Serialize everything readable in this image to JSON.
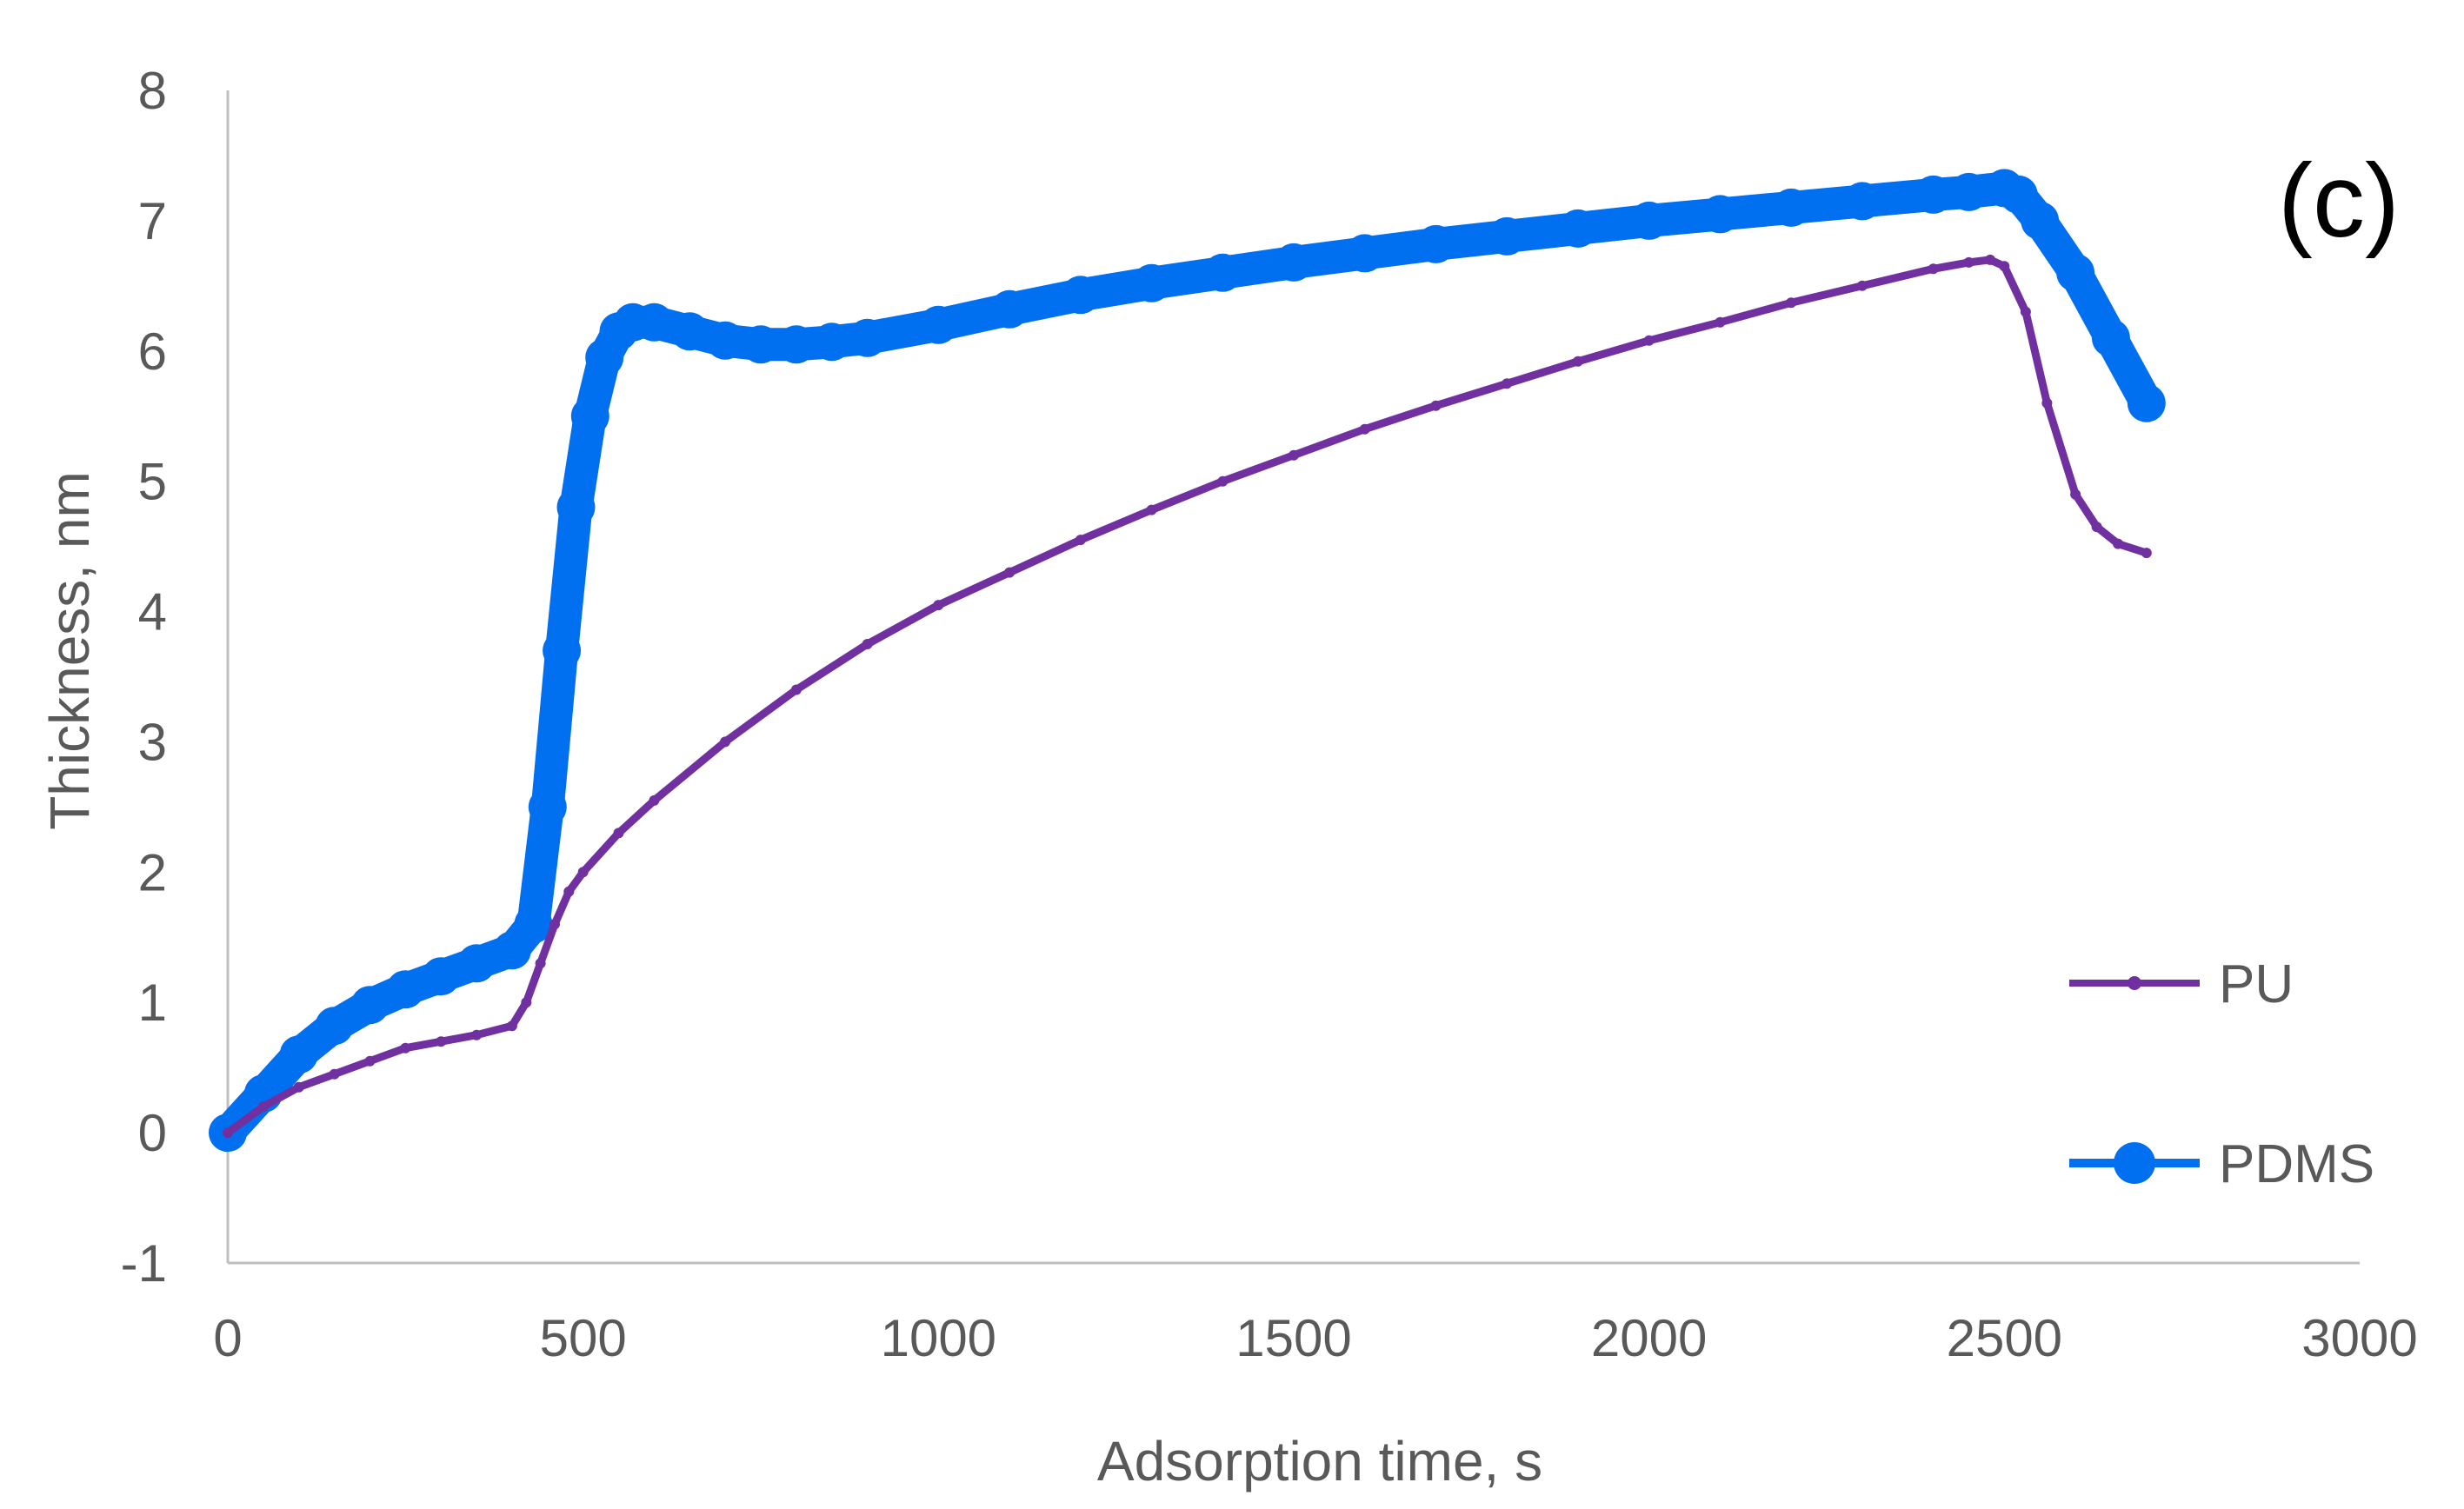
{
  "chart_data": {
    "type": "line",
    "title": "",
    "annotation": "(c)",
    "xlabel": "Adsorption time, s",
    "ylabel": "Thickness, nm",
    "xlim": [
      0,
      3000
    ],
    "ylim": [
      -1,
      8
    ],
    "xticks": [
      0,
      500,
      1000,
      1500,
      2000,
      2500,
      3000
    ],
    "yticks": [
      -1,
      0,
      1,
      2,
      3,
      4,
      5,
      6,
      7,
      8
    ],
    "grid": false,
    "legend_position": "bottom-right",
    "series": [
      {
        "name": "PU",
        "color": "#7030A0",
        "marker": "small-dot",
        "x": [
          0,
          50,
          100,
          150,
          200,
          250,
          300,
          350,
          400,
          420,
          440,
          460,
          480,
          500,
          550,
          600,
          700,
          800,
          900,
          1000,
          1100,
          1200,
          1300,
          1400,
          1500,
          1600,
          1700,
          1800,
          1900,
          2000,
          2100,
          2200,
          2300,
          2400,
          2450,
          2480,
          2500,
          2530,
          2560,
          2600,
          2630,
          2660,
          2700
        ],
        "y": [
          0,
          0.2,
          0.35,
          0.45,
          0.55,
          0.65,
          0.7,
          0.75,
          0.82,
          1.0,
          1.3,
          1.6,
          1.85,
          2.0,
          2.3,
          2.55,
          3.0,
          3.4,
          3.75,
          4.05,
          4.3,
          4.55,
          4.78,
          5.0,
          5.2,
          5.4,
          5.58,
          5.75,
          5.92,
          6.08,
          6.22,
          6.37,
          6.5,
          6.63,
          6.68,
          6.7,
          6.65,
          6.3,
          5.6,
          4.9,
          4.65,
          4.52,
          4.45
        ]
      },
      {
        "name": "PDMS",
        "color": "#0070F0",
        "marker": "large-circle",
        "x": [
          0,
          50,
          100,
          150,
          200,
          250,
          300,
          350,
          400,
          430,
          450,
          470,
          490,
          510,
          530,
          550,
          570,
          600,
          650,
          700,
          750,
          800,
          850,
          900,
          1000,
          1100,
          1200,
          1300,
          1400,
          1500,
          1600,
          1700,
          1800,
          1900,
          2000,
          2100,
          2200,
          2300,
          2400,
          2450,
          2500,
          2520,
          2550,
          2600,
          2650,
          2700
        ],
        "y": [
          0,
          0.3,
          0.6,
          0.82,
          0.98,
          1.1,
          1.2,
          1.3,
          1.4,
          1.6,
          2.5,
          3.7,
          4.8,
          5.5,
          5.95,
          6.15,
          6.22,
          6.22,
          6.15,
          6.08,
          6.05,
          6.05,
          6.07,
          6.1,
          6.2,
          6.32,
          6.43,
          6.52,
          6.6,
          6.68,
          6.75,
          6.82,
          6.88,
          6.94,
          7.0,
          7.05,
          7.1,
          7.15,
          7.2,
          7.22,
          7.25,
          7.2,
          7.0,
          6.6,
          6.1,
          5.6
        ]
      }
    ]
  }
}
